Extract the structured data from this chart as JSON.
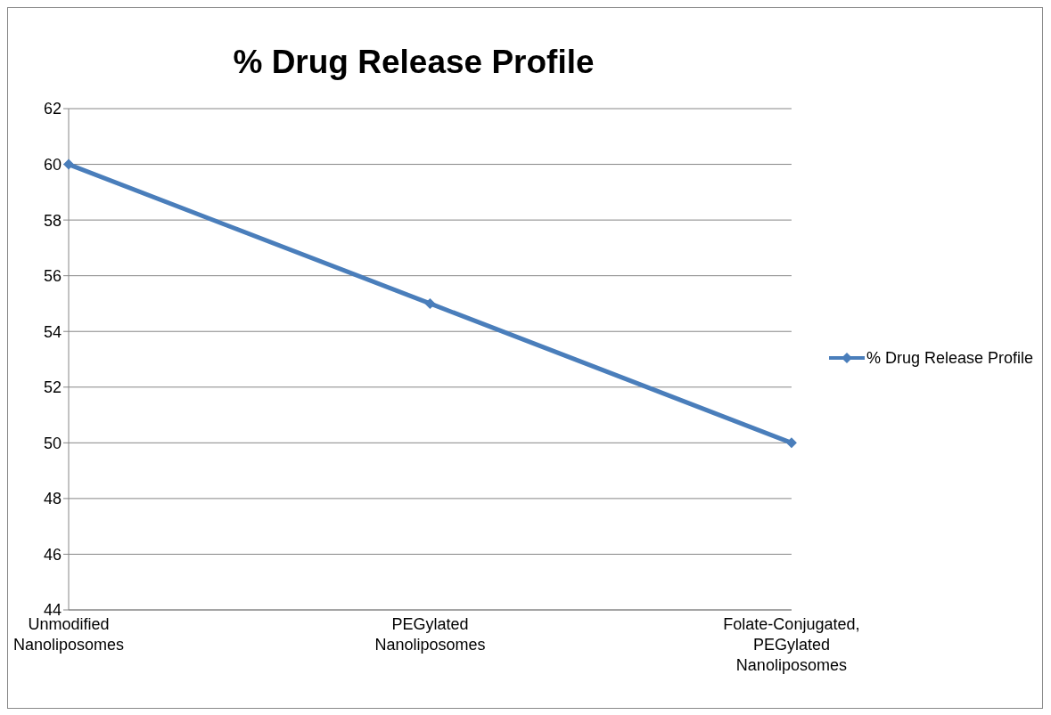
{
  "chart_data": {
    "type": "line",
    "title": "% Drug Release Profile",
    "categories": [
      "Unmodified Nanoliposomes",
      "PEGylated Nanoliposomes",
      "Folate-Conjugated, PEGylated Nanoliposomes"
    ],
    "series": [
      {
        "name": "% Drug Release Profile",
        "color": "#4a7ebb",
        "values": [
          60,
          55,
          50
        ]
      }
    ],
    "ylim": [
      44,
      62
    ],
    "yticks": [
      44,
      46,
      48,
      50,
      52,
      54,
      56,
      58,
      60,
      62
    ],
    "grid": "y",
    "legend": "right",
    "marker": "diamond",
    "line_style": "solid"
  }
}
